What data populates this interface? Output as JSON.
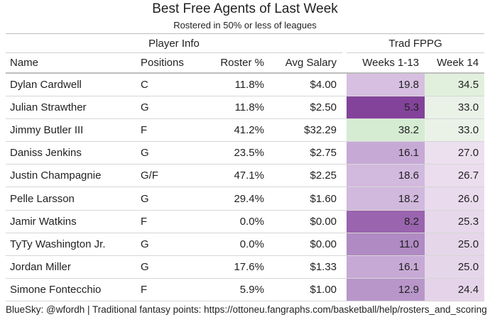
{
  "title": "Best Free Agents of Last Week",
  "subtitle": "Rostered in 50% or less of leagues",
  "spanners": {
    "player_info": "Player Info",
    "trad_fppg": "Trad FPPG"
  },
  "columns": {
    "name": "Name",
    "positions": "Positions",
    "roster_pct": "Roster %",
    "avg_salary": "Avg Salary",
    "weeks_1_13": "Weeks 1-13",
    "week_14": "Week 14"
  },
  "heat_colors": {
    "w113": [
      "#d6bfe0",
      "#83439a",
      "#d5ecd3",
      "#c7a9d5",
      "#d2b9de",
      "#d1b8dd",
      "#9a64ae",
      "#b08ac3",
      "#c7a9d5",
      "#b896c9"
    ],
    "w14": [
      "#e1f0dd",
      "#eaf2e7",
      "#eaf2e7",
      "#ecdfee",
      "#ebddee",
      "#e9dbed",
      "#e7d8eb",
      "#e6d6ea",
      "#e6d6ea",
      "#e5d4e9"
    ]
  },
  "rows": [
    {
      "name": "Dylan Cardwell",
      "pos": "C",
      "roster": "11.8%",
      "salary": "$4.00",
      "w113": "19.8",
      "w14": "34.5"
    },
    {
      "name": "Julian Strawther",
      "pos": "G",
      "roster": "11.8%",
      "salary": "$2.50",
      "w113": "5.3",
      "w14": "33.0"
    },
    {
      "name": "Jimmy Butler III",
      "pos": "F",
      "roster": "41.2%",
      "salary": "$32.29",
      "w113": "38.2",
      "w14": "33.0"
    },
    {
      "name": "Daniss Jenkins",
      "pos": "G",
      "roster": "23.5%",
      "salary": "$2.75",
      "w113": "16.1",
      "w14": "27.0"
    },
    {
      "name": "Justin Champagnie",
      "pos": "G/F",
      "roster": "47.1%",
      "salary": "$2.25",
      "w113": "18.6",
      "w14": "26.7"
    },
    {
      "name": "Pelle Larsson",
      "pos": "G",
      "roster": "29.4%",
      "salary": "$1.60",
      "w113": "18.2",
      "w14": "26.0"
    },
    {
      "name": "Jamir Watkins",
      "pos": "F",
      "roster": "0.0%",
      "salary": "$0.00",
      "w113": "8.2",
      "w14": "25.3"
    },
    {
      "name": "TyTy Washington Jr.",
      "pos": "G",
      "roster": "0.0%",
      "salary": "$0.00",
      "w113": "11.0",
      "w14": "25.0"
    },
    {
      "name": "Jordan Miller",
      "pos": "G",
      "roster": "17.6%",
      "salary": "$1.33",
      "w113": "16.1",
      "w14": "25.0"
    },
    {
      "name": "Simone Fontecchio",
      "pos": "F",
      "roster": "5.9%",
      "salary": "$1.00",
      "w113": "12.9",
      "w14": "24.4"
    }
  ],
  "footer": "BlueSky: @wfordh | Traditional fantasy points: https://ottoneu.fangraphs.com/basketball/help/rosters_and_scoring"
}
